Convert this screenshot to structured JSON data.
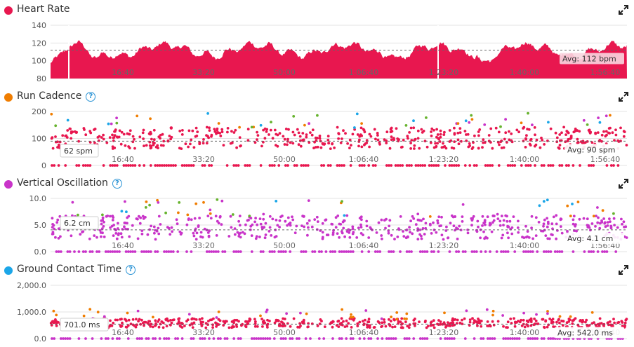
{
  "colors": {
    "heart_rate": "#e8174f",
    "run_cadence": "#f07d00",
    "vertical_oscillation": "#c934c9",
    "ground_contact_time": "#1ba6e8",
    "zone_green": "#67b32e",
    "zone_orange": "#f07d00",
    "zone_blue": "#1ba6e8",
    "zone_red": "#e8174f",
    "zone_purple": "#c934c9"
  },
  "x_ticks": [
    "16:40",
    "33:20",
    "50:00",
    "1:06:40",
    "1:23:20",
    "1:40:00",
    "1:56:40"
  ],
  "panels": [
    {
      "title": "Heart Rate",
      "has_help": false,
      "avg_label": "Avg: 112 bpm",
      "cursor_label": "",
      "chart_data": {
        "type": "area",
        "series": [
          {
            "name": "Heart Rate",
            "unit": "bpm"
          }
        ],
        "y_ticks": [
          "140",
          "120",
          "100",
          "80"
        ],
        "ylim": [
          80,
          140
        ],
        "avg": 112
      }
    },
    {
      "title": "Run Cadence",
      "has_help": true,
      "avg_label": "Avg: 90 spm",
      "cursor_label": "62 spm",
      "chart_data": {
        "type": "scatter",
        "series": [
          {
            "name": "Run Cadence",
            "unit": "spm"
          }
        ],
        "y_ticks": [
          "200",
          "100",
          "0"
        ],
        "ylim": [
          0,
          200
        ],
        "avg": 90
      }
    },
    {
      "title": "Vertical Oscillation",
      "has_help": true,
      "avg_label": "Avg: 4.1 cm",
      "cursor_label": "6.2 cm",
      "chart_data": {
        "type": "scatter",
        "series": [
          {
            "name": "Vertical Oscillation",
            "unit": "cm"
          }
        ],
        "y_ticks": [
          "10.0",
          "5.0",
          "0.0"
        ],
        "ylim": [
          0,
          10
        ],
        "avg": 4.1
      }
    },
    {
      "title": "Ground Contact Time",
      "has_help": true,
      "avg_label": "Avg: 542.0 ms",
      "cursor_label": "701.0 ms",
      "chart_data": {
        "type": "scatter",
        "series": [
          {
            "name": "Ground Contact Time",
            "unit": "ms"
          }
        ],
        "y_ticks": [
          "2,000.0",
          "1,000.0",
          "0.0"
        ],
        "ylim": [
          0,
          2000
        ],
        "avg": 542.0
      }
    }
  ]
}
